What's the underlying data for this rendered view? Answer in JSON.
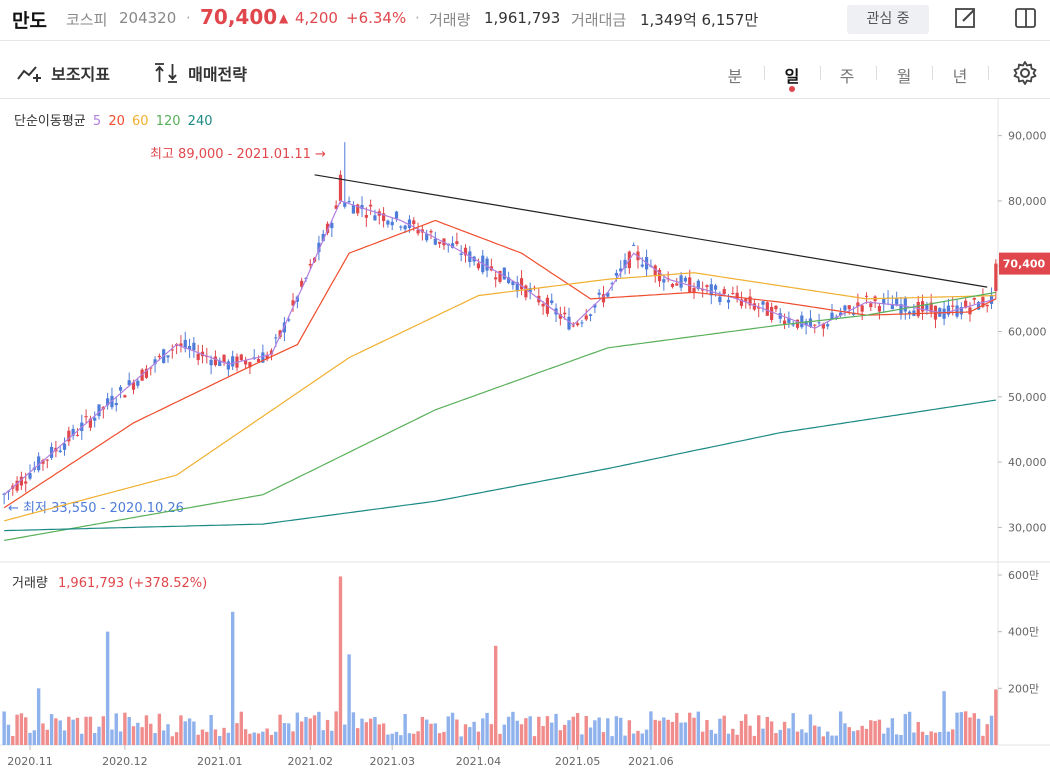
{
  "header": {
    "name": "만도",
    "market": "코스피",
    "code": "204320",
    "dot": "·",
    "price": "70,400",
    "change_arrow": "▲",
    "change": "4,200",
    "change_pct": "+6.34%",
    "volume_label": "거래량",
    "volume": "1,961,793",
    "amount_label": "거래대금",
    "amount": "1,349억 6,157만",
    "watch_button": "관심 중"
  },
  "toolbar": {
    "indicators_label": "보조지표",
    "strategy_label": "매매전략",
    "periods": [
      "분",
      "일",
      "주",
      "월",
      "년"
    ],
    "active_period": "일"
  },
  "legend": {
    "title": "단순이동평균",
    "ma": [
      {
        "label": "5",
        "color": "#b27fe0"
      },
      {
        "label": "20",
        "color": "#ef4c2c"
      },
      {
        "label": "60",
        "color": "#f0b030"
      },
      {
        "label": "120",
        "color": "#5ab05a"
      },
      {
        "label": "240",
        "color": "#1b8a84"
      }
    ]
  },
  "annotations": {
    "high_label": "최고 89,000 - 2021.01.11 →",
    "low_label": "← 최저 33,550 - 2020.10.26"
  },
  "volume_panel": {
    "title": "거래량",
    "value": "1,961,793 (+378.52%)"
  },
  "colors": {
    "up": "#e0474c",
    "down": "#4e7cd8",
    "vol_up": "#f08c8c",
    "vol_down": "#8fb1ec",
    "trendline": "#222222"
  },
  "chart_data": {
    "type": "candlestick",
    "price_axis": {
      "ticks": [
        "90,000",
        "80,000",
        "70,000",
        "60,000",
        "50,000",
        "40,000",
        "30,000"
      ],
      "current": "70,400",
      "range": [
        25000,
        95000
      ]
    },
    "volume_axis": {
      "ticks": [
        "600만",
        "400만",
        "200만"
      ],
      "range": [
        0,
        6000000
      ]
    },
    "x_ticks": [
      "2020.11",
      "2020.12",
      "2021.01",
      "2021.02",
      "2021.03",
      "2021.04",
      "2021.05",
      "2021.06"
    ],
    "high": {
      "value": 89000,
      "date": "2021.01.11"
    },
    "low": {
      "value": 33550,
      "date": "2020.10.26"
    },
    "trendline": {
      "from": {
        "date": "2021.01.08",
        "price": 84000
      },
      "to": {
        "date": "2021.06.02",
        "price": 66800
      }
    },
    "ma_anchors": {
      "ma5": [
        [
          0,
          35000
        ],
        [
          40,
          58000
        ],
        [
          52,
          55000
        ],
        [
          62,
          56500
        ],
        [
          70,
          68000
        ],
        [
          78,
          80000
        ],
        [
          92,
          77000
        ],
        [
          104,
          73000
        ],
        [
          120,
          67000
        ],
        [
          132,
          61000
        ],
        [
          140,
          66000
        ],
        [
          146,
          72000
        ],
        [
          154,
          68000
        ],
        [
          170,
          65000
        ],
        [
          178,
          63000
        ],
        [
          188,
          60500
        ],
        [
          200,
          64500
        ],
        [
          208,
          64000
        ],
        [
          218,
          62800
        ],
        [
          230,
          65000
        ]
      ],
      "ma20": [
        [
          0,
          33000
        ],
        [
          30,
          46000
        ],
        [
          55,
          54000
        ],
        [
          68,
          58000
        ],
        [
          80,
          72000
        ],
        [
          100,
          77000
        ],
        [
          120,
          72000
        ],
        [
          136,
          65000
        ],
        [
          160,
          66000
        ],
        [
          180,
          64500
        ],
        [
          200,
          62500
        ],
        [
          224,
          63000
        ],
        [
          230,
          65000
        ]
      ],
      "ma60": [
        [
          0,
          31000
        ],
        [
          40,
          38000
        ],
        [
          80,
          56000
        ],
        [
          110,
          65500
        ],
        [
          140,
          68000
        ],
        [
          160,
          69000
        ],
        [
          180,
          67000
        ],
        [
          200,
          65000
        ],
        [
          230,
          65500
        ]
      ],
      "ma120": [
        [
          0,
          28000
        ],
        [
          60,
          35000
        ],
        [
          100,
          48000
        ],
        [
          140,
          57500
        ],
        [
          180,
          61000
        ],
        [
          200,
          62500
        ],
        [
          230,
          66000
        ]
      ],
      "ma240": [
        [
          0,
          29500
        ],
        [
          60,
          30500
        ],
        [
          100,
          34000
        ],
        [
          140,
          39000
        ],
        [
          180,
          44500
        ],
        [
          230,
          49500
        ]
      ]
    }
  }
}
